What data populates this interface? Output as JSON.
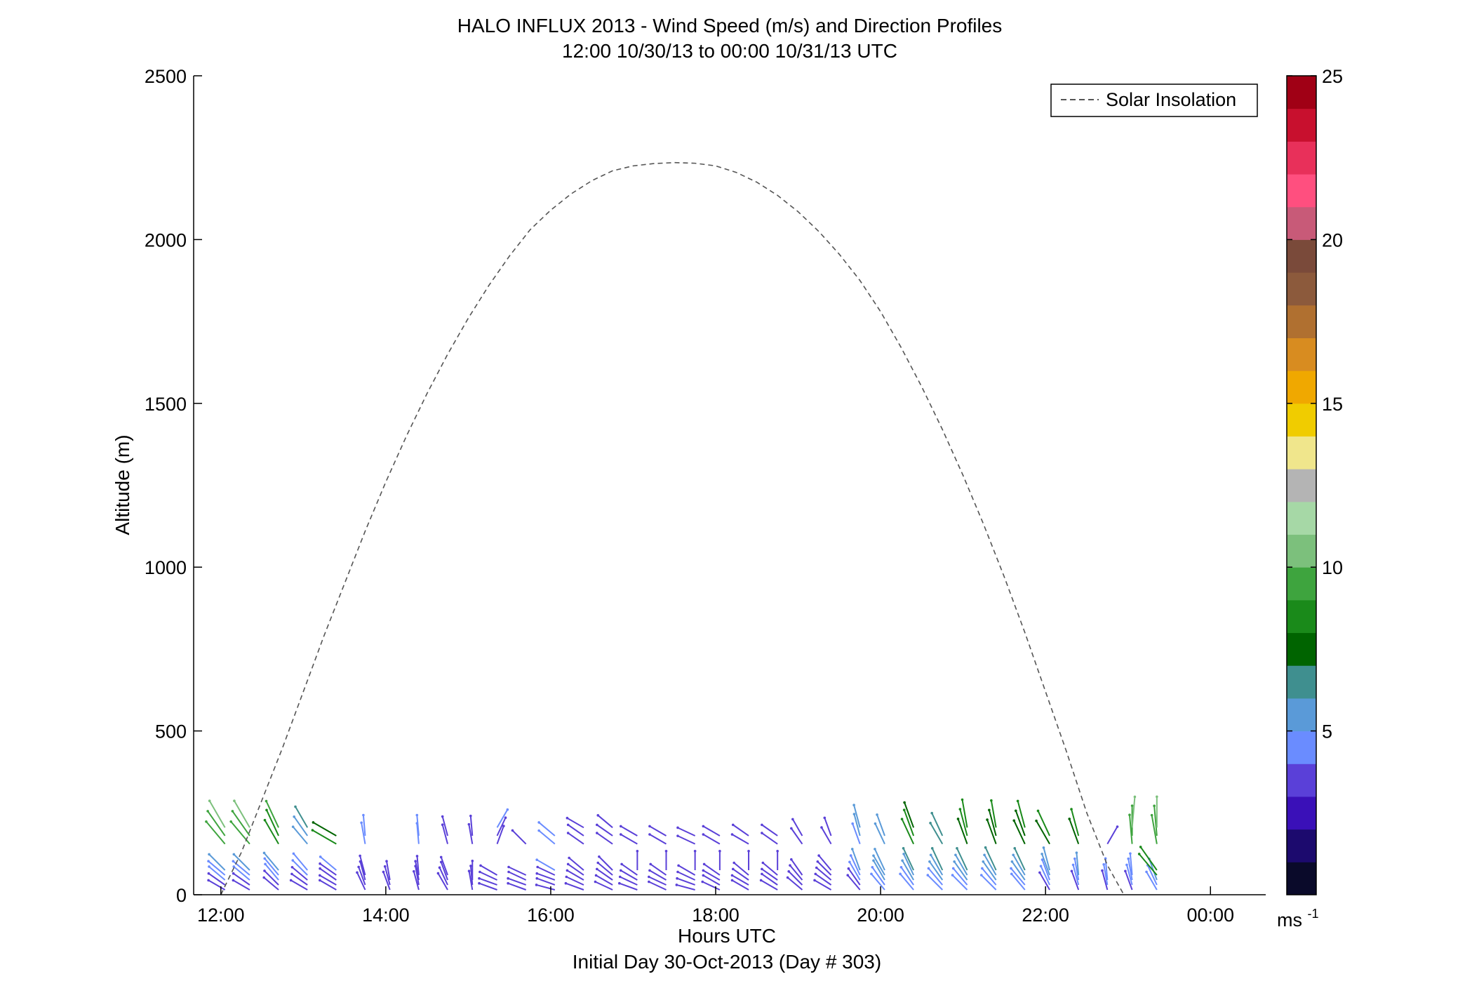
{
  "chart_data": {
    "type": "line",
    "title": "HALO INFLUX 2013 - Wind Speed (m/s) and Direction Profiles",
    "subtitle": "12:00 10/30/13 to 00:00 10/31/13  UTC",
    "xlabel": "Hours UTC",
    "xlabel2": "Initial Day 30-Oct-2013 (Day # 303)",
    "ylabel": "Altitude (m)",
    "xlim": [
      11.67,
      24.67
    ],
    "ylim": [
      0,
      2500
    ],
    "x_ticks": [
      12,
      14,
      16,
      18,
      20,
      22,
      24
    ],
    "x_tick_labels": [
      "12:00",
      "14:00",
      "16:00",
      "18:00",
      "20:00",
      "22:00",
      "00:00"
    ],
    "y_ticks": [
      0,
      500,
      1000,
      1500,
      2000,
      2500
    ],
    "y_tick_labels": [
      "0",
      "500",
      "1000",
      "1500",
      "2000",
      "2500"
    ],
    "grid": false,
    "legend_position": "top-right",
    "series": [
      {
        "name": "Solar Insolation",
        "style": "dashed",
        "color": "#555555",
        "x": [
          12.0,
          12.25,
          12.5,
          12.75,
          13.0,
          13.25,
          13.5,
          13.75,
          14.0,
          14.25,
          14.5,
          14.75,
          15.0,
          15.25,
          15.5,
          15.75,
          16.0,
          16.25,
          16.5,
          16.75,
          17.0,
          17.25,
          17.5,
          17.75,
          18.0,
          18.25,
          18.5,
          18.75,
          19.0,
          19.25,
          19.5,
          19.75,
          20.0,
          20.25,
          20.5,
          20.75,
          21.0,
          21.25,
          21.5,
          21.75,
          22.0,
          22.25,
          22.5,
          22.75,
          22.95
        ],
        "y": [
          0,
          130,
          290,
          450,
          620,
          790,
          950,
          1110,
          1260,
          1400,
          1530,
          1650,
          1760,
          1860,
          1950,
          2030,
          2090,
          2140,
          2180,
          2210,
          2225,
          2232,
          2235,
          2233,
          2225,
          2205,
          2175,
          2135,
          2085,
          2025,
          1955,
          1875,
          1780,
          1670,
          1550,
          1420,
          1280,
          1130,
          970,
          800,
          620,
          440,
          250,
          90,
          0
        ]
      }
    ],
    "wind_barbs": {
      "heights": [
        15,
        30,
        45,
        60,
        75,
        155,
        180,
        205
      ],
      "profiles": [
        {
          "x": 12.05,
          "speeds": [
            3,
            3.5,
            4,
            4.5,
            5,
            9,
            9.5,
            10
          ],
          "dirs": [
            300,
            305,
            310,
            310,
            315,
            320,
            325,
            330
          ]
        },
        {
          "x": 12.35,
          "speeds": [
            3,
            3.5,
            4,
            4.5,
            5,
            9,
            9.5,
            10
          ],
          "dirs": [
            300,
            305,
            310,
            310,
            315,
            320,
            325,
            330
          ]
        },
        {
          "x": 12.7,
          "speeds": [
            3,
            3.5,
            4,
            4.5,
            5,
            8,
            8.5,
            9
          ],
          "dirs": [
            310,
            315,
            320,
            320,
            320,
            330,
            335,
            335
          ]
        },
        {
          "x": 13.05,
          "speeds": [
            3,
            3,
            3.5,
            4,
            4.5,
            5,
            5.5,
            6
          ],
          "dirs": [
            300,
            305,
            310,
            315,
            320,
            320,
            325,
            330
          ]
        },
        {
          "x": 13.4,
          "speeds": [
            3,
            3,
            3.5,
            3.5,
            4,
            8,
            7.5,
            0
          ],
          "dirs": [
            300,
            300,
            305,
            305,
            310,
            300,
            300,
            0
          ]
        },
        {
          "x": 13.75,
          "speeds": [
            3,
            3,
            3,
            3.5,
            0,
            4.5,
            4,
            0
          ],
          "dirs": [
            335,
            340,
            345,
            345,
            0,
            350,
            355,
            0
          ]
        },
        {
          "x": 14.05,
          "speeds": [
            3,
            3,
            3,
            0,
            0,
            0,
            0,
            0
          ],
          "dirs": [
            340,
            345,
            350,
            0,
            0,
            0,
            0,
            0
          ]
        },
        {
          "x": 14.4,
          "speeds": [
            3,
            3,
            3,
            3,
            0,
            4,
            4,
            0
          ],
          "dirs": [
            345,
            350,
            350,
            355,
            0,
            355,
            355,
            0
          ]
        },
        {
          "x": 14.75,
          "speeds": [
            3,
            3,
            3,
            3,
            0,
            3.5,
            3.5,
            0
          ],
          "dirs": [
            330,
            335,
            340,
            340,
            0,
            345,
            345,
            0
          ]
        },
        {
          "x": 15.05,
          "speeds": [
            3,
            3,
            3,
            0,
            0,
            3.5,
            3.5,
            0
          ],
          "dirs": [
            350,
            355,
            0,
            0,
            0,
            350,
            355,
            0
          ]
        },
        {
          "x": 15.35,
          "speeds": [
            3,
            3,
            3,
            3,
            0,
            3,
            3.5,
            4
          ],
          "dirs": [
            290,
            290,
            295,
            300,
            0,
            20,
            25,
            30
          ]
        },
        {
          "x": 15.7,
          "speeds": [
            3,
            3,
            3,
            3,
            0,
            3,
            0,
            0
          ],
          "dirs": [
            290,
            290,
            295,
            295,
            0,
            315,
            0,
            0
          ]
        },
        {
          "x": 16.05,
          "speeds": [
            3,
            3,
            3,
            3,
            4,
            4,
            4,
            0
          ],
          "dirs": [
            285,
            290,
            290,
            295,
            300,
            310,
            310,
            0
          ]
        },
        {
          "x": 16.4,
          "speeds": [
            3,
            3,
            3,
            3,
            3,
            3,
            3,
            3
          ],
          "dirs": [
            290,
            295,
            300,
            305,
            310,
            305,
            305,
            300
          ]
        },
        {
          "x": 16.75,
          "speeds": [
            3,
            3,
            3,
            3,
            3,
            3,
            3,
            3
          ],
          "dirs": [
            295,
            300,
            305,
            310,
            315,
            305,
            305,
            310
          ]
        },
        {
          "x": 17.05,
          "speeds": [
            3,
            3,
            3,
            3,
            3,
            3,
            3,
            0
          ],
          "dirs": [
            290,
            295,
            300,
            305,
            0,
            300,
            300,
            0
          ]
        },
        {
          "x": 17.4,
          "speeds": [
            3,
            3,
            3,
            3,
            3,
            3,
            3,
            0
          ],
          "dirs": [
            295,
            295,
            300,
            305,
            0,
            300,
            300,
            0
          ]
        },
        {
          "x": 17.75,
          "speeds": [
            3,
            3,
            3,
            3,
            3,
            3,
            3,
            0
          ],
          "dirs": [
            285,
            290,
            295,
            300,
            0,
            295,
            295,
            0
          ]
        },
        {
          "x": 18.05,
          "speeds": [
            3,
            3,
            3,
            3,
            3,
            3,
            3,
            0
          ],
          "dirs": [
            295,
            300,
            300,
            305,
            0,
            300,
            300,
            0
          ]
        },
        {
          "x": 18.4,
          "speeds": [
            3,
            3,
            3,
            3,
            3,
            3,
            3,
            0
          ],
          "dirs": [
            300,
            300,
            305,
            310,
            0,
            300,
            305,
            0
          ]
        },
        {
          "x": 18.75,
          "speeds": [
            3,
            3,
            3,
            3,
            3,
            3,
            3,
            0
          ],
          "dirs": [
            300,
            305,
            305,
            310,
            0,
            305,
            305,
            0
          ]
        },
        {
          "x": 19.05,
          "speeds": [
            3,
            3,
            3,
            3,
            0,
            3,
            3,
            0
          ],
          "dirs": [
            310,
            315,
            320,
            325,
            0,
            325,
            330,
            0
          ]
        },
        {
          "x": 19.4,
          "speeds": [
            3,
            3,
            3,
            3,
            3,
            3,
            3,
            0
          ],
          "dirs": [
            300,
            305,
            310,
            315,
            320,
            330,
            340,
            0
          ]
        },
        {
          "x": 19.75,
          "speeds": [
            3,
            3.5,
            4,
            4.5,
            5,
            4.5,
            5,
            5.5
          ],
          "dirs": [
            320,
            325,
            330,
            335,
            340,
            340,
            345,
            345
          ]
        },
        {
          "x": 20.05,
          "speeds": [
            4,
            4.5,
            5,
            5,
            5.5,
            5,
            5,
            0
          ],
          "dirs": [
            320,
            325,
            330,
            330,
            335,
            335,
            340,
            0
          ]
        },
        {
          "x": 20.4,
          "speeds": [
            4,
            4.5,
            5,
            5.5,
            6,
            8,
            8,
            7.5
          ],
          "dirs": [
            320,
            325,
            330,
            335,
            335,
            335,
            340,
            340
          ]
        },
        {
          "x": 20.75,
          "speeds": [
            4,
            4.5,
            5,
            5.5,
            6,
            6,
            6.5,
            0
          ],
          "dirs": [
            315,
            320,
            325,
            330,
            335,
            330,
            335,
            0
          ]
        },
        {
          "x": 21.05,
          "speeds": [
            4,
            4.5,
            5,
            5.5,
            6,
            7.5,
            8,
            8.5
          ],
          "dirs": [
            315,
            320,
            325,
            330,
            335,
            340,
            345,
            350
          ]
        },
        {
          "x": 21.4,
          "speeds": [
            4,
            4.5,
            5,
            5.5,
            6.5,
            7,
            7.5,
            8
          ],
          "dirs": [
            315,
            320,
            325,
            330,
            335,
            340,
            345,
            350
          ]
        },
        {
          "x": 21.75,
          "speeds": [
            4,
            4.5,
            5,
            5.5,
            6,
            7,
            7.5,
            8
          ],
          "dirs": [
            320,
            320,
            325,
            330,
            335,
            335,
            340,
            345
          ]
        },
        {
          "x": 22.05,
          "speeds": [
            3.5,
            4,
            4.5,
            5,
            5.5,
            7.5,
            8,
            0
          ],
          "dirs": [
            330,
            335,
            340,
            340,
            345,
            330,
            335,
            0
          ]
        },
        {
          "x": 22.4,
          "speeds": [
            3.5,
            4,
            4.5,
            5,
            0,
            7.5,
            8,
            0
          ],
          "dirs": [
            340,
            345,
            350,
            355,
            0,
            340,
            345,
            0
          ]
        },
        {
          "x": 22.75,
          "speeds": [
            3.5,
            4,
            4.5,
            0,
            0,
            3.5,
            0,
            0
          ],
          "dirs": [
            345,
            350,
            355,
            0,
            0,
            30,
            0,
            0
          ]
        },
        {
          "x": 23.05,
          "speeds": [
            3.5,
            4,
            4.5,
            4.5,
            0,
            9,
            9.5,
            10
          ],
          "dirs": [
            340,
            345,
            350,
            355,
            0,
            355,
            0,
            5
          ]
        },
        {
          "x": 23.35,
          "speeds": [
            4,
            4.5,
            5,
            8,
            8.5,
            9,
            9.5,
            10
          ],
          "dirs": [
            330,
            335,
            340,
            320,
            325,
            350,
            355,
            0
          ]
        }
      ]
    },
    "colorbar": {
      "range": [
        0,
        25
      ],
      "ticks": [
        5,
        10,
        15,
        20,
        25
      ],
      "tick_labels": [
        "5",
        "10",
        "15",
        "20",
        "25"
      ],
      "unit_label": "ms",
      "unit_exponent": "-1",
      "colors": [
        "#0a0a2a",
        "#1c0a6e",
        "#3a10b8",
        "#5a40d8",
        "#6a8cff",
        "#5a9ad8",
        "#3f8f8f",
        "#006400",
        "#1a8a1a",
        "#3ea43e",
        "#7cc07c",
        "#a6d8a6",
        "#b4b4b4",
        "#f0e68c",
        "#f0cc00",
        "#f0a800",
        "#d88c20",
        "#b07030",
        "#8c5a3c",
        "#7a4a3a",
        "#c85a78",
        "#ff4f7f",
        "#e8305a",
        "#c8102e",
        "#a00015"
      ]
    }
  }
}
